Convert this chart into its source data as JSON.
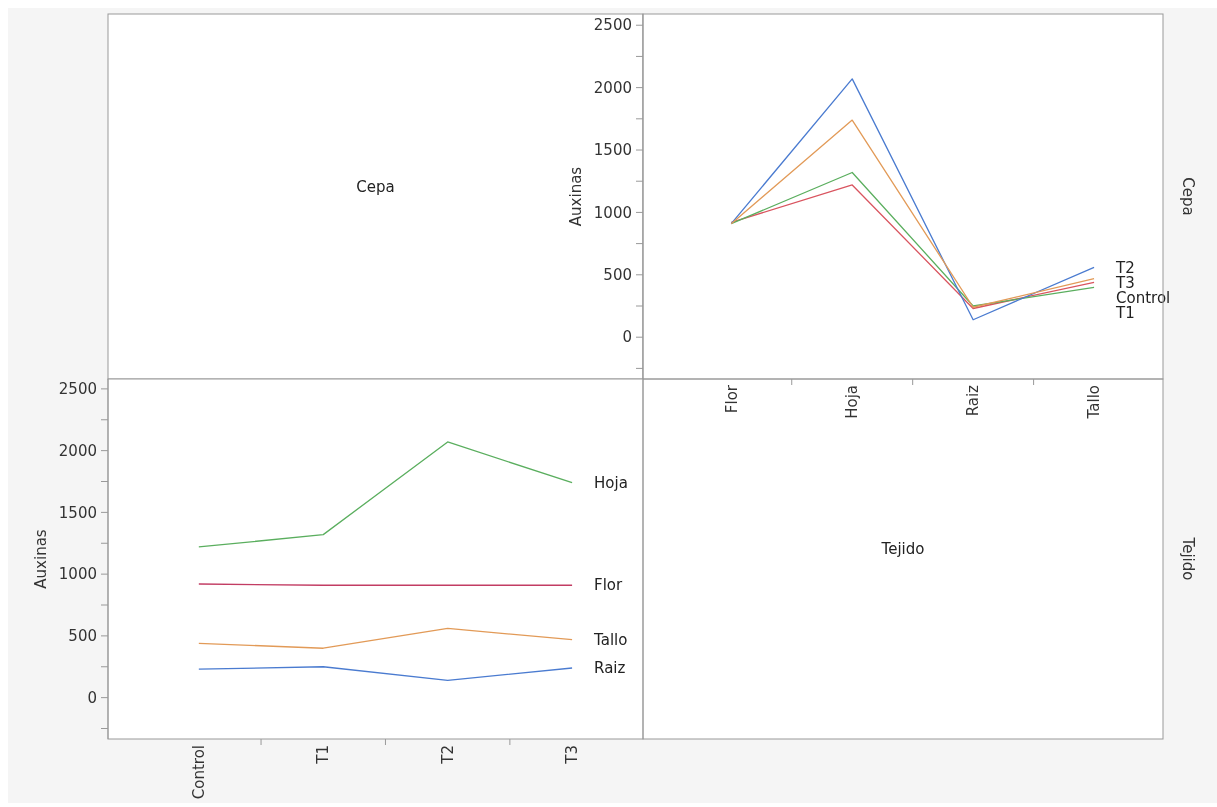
{
  "chart_data": [
    {
      "type": "other",
      "title": "Cepa"
    },
    {
      "type": "line",
      "ylabel": "Auxinas",
      "annotations": [
        "Cepa"
      ],
      "categories": [
        "Flor",
        "Hoja",
        "Raiz",
        "Tallo"
      ],
      "ylim": [
        -335,
        2590
      ],
      "yticks": [
        {
          "value": -250,
          "label": null
        },
        0,
        {
          "value": 250,
          "label": null
        },
        500,
        {
          "value": 750,
          "label": null
        },
        1000,
        {
          "value": 1250,
          "label": null
        },
        1500,
        {
          "value": 1750,
          "label": null
        },
        2000,
        {
          "value": 2250,
          "label": null
        },
        2500
      ],
      "marker": "none",
      "series": [
        {
          "name": "Control",
          "color": "#d9545f",
          "values": [
            920,
            1220,
            230,
            440
          ]
        },
        {
          "name": "T1",
          "color": "#5aae5e",
          "values": [
            910,
            1320,
            250,
            400
          ]
        },
        {
          "name": "T2",
          "color": "#4a7bd0",
          "values": [
            910,
            2070,
            140,
            560
          ]
        },
        {
          "name": "T3",
          "color": "#e29a57",
          "values": [
            910,
            1740,
            240,
            470
          ]
        }
      ]
    },
    {
      "type": "line",
      "ylabel": "Auxinas",
      "annotations": [
        "Tejido"
      ],
      "categories": [
        "Control",
        "T1",
        "T2",
        "T3"
      ],
      "ylim": [
        -335,
        2580
      ],
      "yticks": [
        {
          "value": -250,
          "label": null
        },
        0,
        {
          "value": 250,
          "label": null
        },
        500,
        {
          "value": 750,
          "label": null
        },
        1000,
        {
          "value": 1250,
          "label": null
        },
        1500,
        {
          "value": 1750,
          "label": null
        },
        2000,
        {
          "value": 2250,
          "label": null
        },
        2500
      ],
      "marker": "none",
      "series": [
        {
          "name": "Flor",
          "color": "#c23c63",
          "values": [
            920,
            910,
            910,
            910
          ]
        },
        {
          "name": "Hoja",
          "color": "#5aae5e",
          "values": [
            1220,
            1320,
            2070,
            1740
          ]
        },
        {
          "name": "Raiz",
          "color": "#4a7bd0",
          "values": [
            230,
            250,
            140,
            240
          ]
        },
        {
          "name": "Tallo",
          "color": "#e29a57",
          "values": [
            440,
            400,
            560,
            470
          ]
        }
      ]
    },
    {
      "type": "other",
      "title": "Tejido"
    }
  ]
}
